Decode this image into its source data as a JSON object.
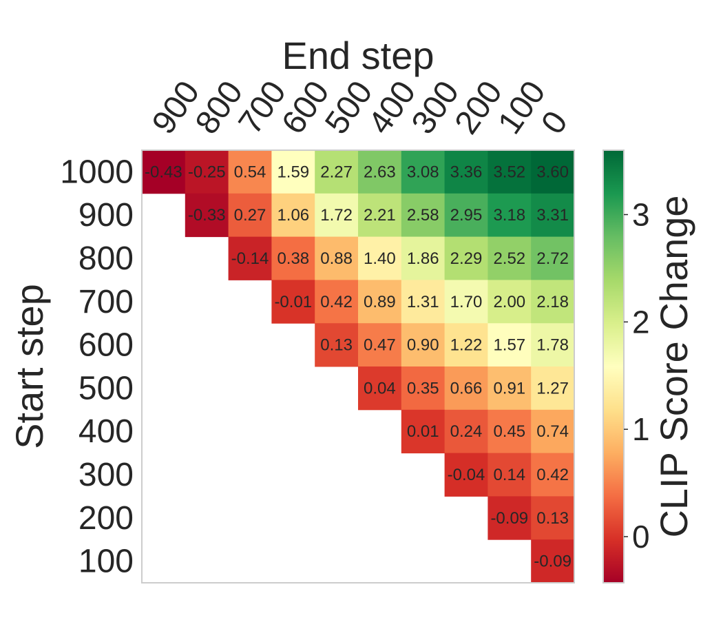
{
  "chart_data": {
    "type": "heatmap",
    "title": "",
    "xlabel": "End step",
    "ylabel": "Start step",
    "x_categories": [
      "900",
      "800",
      "700",
      "600",
      "500",
      "400",
      "300",
      "200",
      "100",
      "0"
    ],
    "y_categories": [
      "1000",
      "900",
      "800",
      "700",
      "600",
      "500",
      "400",
      "300",
      "200",
      "100"
    ],
    "values": [
      [
        -0.43,
        -0.25,
        0.54,
        1.59,
        2.27,
        2.63,
        3.08,
        3.36,
        3.52,
        3.6
      ],
      [
        null,
        -0.33,
        0.27,
        1.06,
        1.72,
        2.21,
        2.58,
        2.95,
        3.18,
        3.31
      ],
      [
        null,
        null,
        -0.14,
        0.38,
        0.88,
        1.4,
        1.86,
        2.29,
        2.52,
        2.72
      ],
      [
        null,
        null,
        null,
        -0.01,
        0.42,
        0.89,
        1.31,
        1.7,
        2.0,
        2.18
      ],
      [
        null,
        null,
        null,
        null,
        0.13,
        0.47,
        0.9,
        1.22,
        1.57,
        1.78
      ],
      [
        null,
        null,
        null,
        null,
        null,
        0.04,
        0.35,
        0.66,
        0.91,
        1.27
      ],
      [
        null,
        null,
        null,
        null,
        null,
        null,
        0.01,
        0.24,
        0.45,
        0.74
      ],
      [
        null,
        null,
        null,
        null,
        null,
        null,
        null,
        -0.04,
        0.14,
        0.42
      ],
      [
        null,
        null,
        null,
        null,
        null,
        null,
        null,
        null,
        -0.09,
        0.13
      ],
      [
        null,
        null,
        null,
        null,
        null,
        null,
        null,
        null,
        null,
        -0.09
      ]
    ],
    "value_labels": [
      [
        "-0.43",
        "-0.25",
        "0.54",
        "1.59",
        "2.27",
        "2.63",
        "3.08",
        "3.36",
        "3.52",
        "3.60"
      ],
      [
        "",
        "-0.33",
        "0.27",
        "1.06",
        "1.72",
        "2.21",
        "2.58",
        "2.95",
        "3.18",
        "3.31"
      ],
      [
        "",
        "",
        "-0.14",
        "0.38",
        "0.88",
        "1.40",
        "1.86",
        "2.29",
        "2.52",
        "2.72"
      ],
      [
        "",
        "",
        "",
        "-0.01",
        "0.42",
        "0.89",
        "1.31",
        "1.70",
        "2.00",
        "2.18"
      ],
      [
        "",
        "",
        "",
        "",
        "0.13",
        "0.47",
        "0.90",
        "1.22",
        "1.57",
        "1.78"
      ],
      [
        "",
        "",
        "",
        "",
        "",
        "0.04",
        "0.35",
        "0.66",
        "0.91",
        "1.27"
      ],
      [
        "",
        "",
        "",
        "",
        "",
        "",
        "0.01",
        "0.24",
        "0.45",
        "0.74"
      ],
      [
        "",
        "",
        "",
        "",
        "",
        "",
        "",
        "-0.04",
        "0.14",
        "0.42"
      ],
      [
        "",
        "",
        "",
        "",
        "",
        "",
        "",
        "",
        "-0.09",
        "0.13"
      ],
      [
        "",
        "",
        "",
        "",
        "",
        "",
        "",
        "",
        "",
        "-0.09"
      ]
    ],
    "colorbar": {
      "label": "CLIP Score Change",
      "ticks": [
        "0",
        "1",
        "2",
        "3"
      ],
      "range": [
        -0.43,
        3.6
      ],
      "colormap": "RdYlGn"
    },
    "x_tick_rotation": "diagonal",
    "x_axis_position": "top",
    "grid": false,
    "colors": {
      "text": "#262626",
      "frame": "#cccccc"
    }
  }
}
